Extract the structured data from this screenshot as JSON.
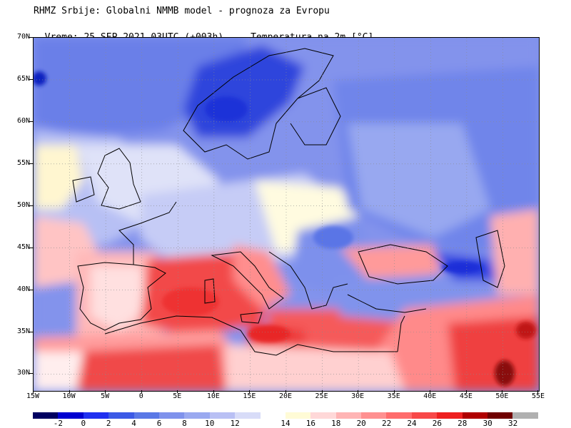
{
  "header": {
    "line1": "RHMZ Srbije: Globalni NMMB model - prognoza za Evropu",
    "line2_time": "Vreme: 25 SEP 2021 03UTC (+003h)",
    "line2_param": "Temperatura na 2m [°C]"
  },
  "map": {
    "extent": {
      "lon_min": -15,
      "lon_max": 55,
      "lat_min": 28,
      "lat_max": 70
    },
    "lat_ticks": [
      {
        "value": 70,
        "label": "70N"
      },
      {
        "value": 65,
        "label": "65N"
      },
      {
        "value": 60,
        "label": "60N"
      },
      {
        "value": 55,
        "label": "55N"
      },
      {
        "value": 50,
        "label": "50N"
      },
      {
        "value": 45,
        "label": "45N"
      },
      {
        "value": 40,
        "label": "40N"
      },
      {
        "value": 35,
        "label": "35N"
      },
      {
        "value": 30,
        "label": "30N"
      }
    ],
    "lon_ticks": [
      {
        "value": -15,
        "label": "15W"
      },
      {
        "value": -10,
        "label": "10W"
      },
      {
        "value": -5,
        "label": "5W"
      },
      {
        "value": 0,
        "label": "0"
      },
      {
        "value": 5,
        "label": "5E"
      },
      {
        "value": 10,
        "label": "10E"
      },
      {
        "value": 15,
        "label": "15E"
      },
      {
        "value": 20,
        "label": "20E"
      },
      {
        "value": 25,
        "label": "25E"
      },
      {
        "value": 30,
        "label": "30E"
      },
      {
        "value": 35,
        "label": "35E"
      },
      {
        "value": 40,
        "label": "40E"
      },
      {
        "value": 45,
        "label": "45E"
      },
      {
        "value": 50,
        "label": "50E"
      },
      {
        "value": 55,
        "label": "55E"
      }
    ],
    "grid": true
  },
  "colorbar": {
    "colors": [
      "#000060",
      "#0000d0",
      "#2030f0",
      "#3c5ae6",
      "#5a78e6",
      "#7f92ec",
      "#9aa9f0",
      "#b9c0f4",
      "#d8dcf8",
      "#ffffff",
      "#fffbd6",
      "#ffd8d8",
      "#ffb4b4",
      "#ff9090",
      "#ff6c6c",
      "#f84848",
      "#ee2020",
      "#b00000",
      "#700000",
      "#b0b0b0"
    ],
    "labels": [
      "-2",
      "0",
      "2",
      "4",
      "6",
      "8",
      "10",
      "12",
      "14",
      "16",
      "18",
      "20",
      "22",
      "24",
      "26",
      "28",
      "30",
      "32"
    ]
  }
}
